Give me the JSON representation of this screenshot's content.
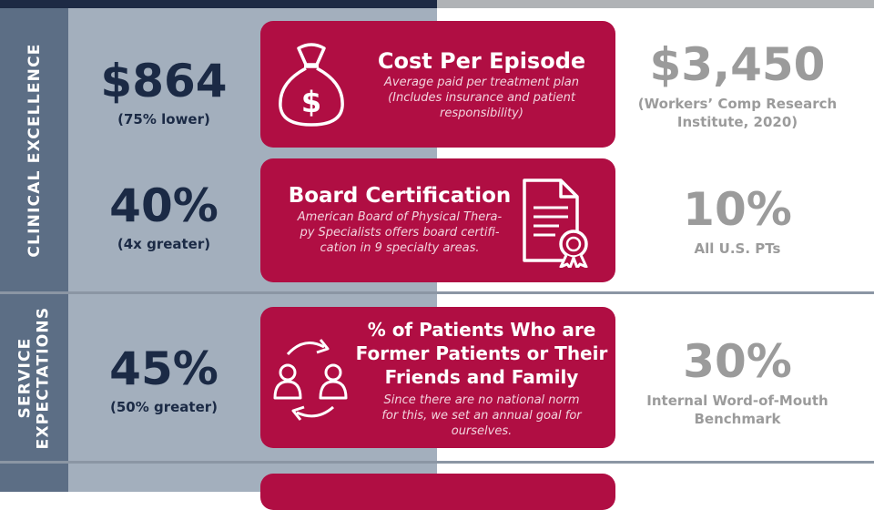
{
  "sections": [
    {
      "label": "CLINICAL EXCELLENCE"
    },
    {
      "label_lines": [
        "SERVICE",
        "EXPECTATIONS"
      ]
    }
  ],
  "rows": [
    {
      "metric": {
        "value": "$864",
        "note": "(75% lower)"
      },
      "card": {
        "title": "Cost Per Episode",
        "desc_lines": [
          "Average paid per treatment plan",
          "(Includes insurance and patient",
          "responsibility)"
        ],
        "icon": "money-bag-icon"
      },
      "benchmark": {
        "value": "$3,450",
        "note_lines": [
          "(Workers’ Comp Research",
          "Institute, 2020)"
        ]
      }
    },
    {
      "metric": {
        "value": "40%",
        "note": "(4x greater)"
      },
      "card": {
        "title": "Board Certification",
        "desc_lines": [
          "American Board of Physical Thera-",
          "py Specialists offers board certifi-",
          "cation in 9 specialty areas."
        ],
        "icon": "certificate-icon"
      },
      "benchmark": {
        "value": "10%",
        "note_lines": [
          "All U.S. PTs"
        ]
      }
    },
    {
      "metric": {
        "value": "45%",
        "note": "(50% greater)"
      },
      "card": {
        "title_lines": [
          "% of Patients Who are",
          "Former Patients or Their",
          "Friends and Family"
        ],
        "desc_lines": [
          "Since there are no national norm",
          "for this, we set an annual goal for",
          "ourselves."
        ],
        "icon": "referral-cycle-icon"
      },
      "benchmark": {
        "value": "30%",
        "note_lines": [
          "Internal Word-of-Mouth",
          "Benchmark"
        ]
      }
    }
  ],
  "colors": {
    "navy": "#1d2a44",
    "sidebar": "#5c6e85",
    "left_panel": "#a3afbd",
    "card": "#b00e43",
    "benchmark_gray": "#9b9b9b"
  }
}
